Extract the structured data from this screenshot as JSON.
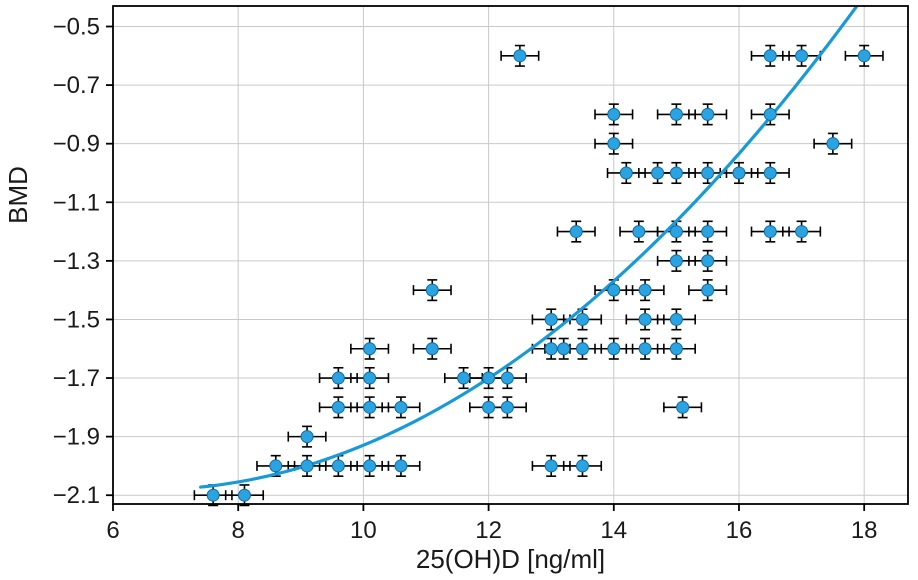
{
  "chart_data": {
    "type": "scatter",
    "title": "",
    "xlabel": "25(OH)D [ng/ml]",
    "ylabel": "BMD",
    "xlim": [
      6,
      18.7
    ],
    "ylim": [
      -2.13,
      -0.43
    ],
    "xticks": [
      6,
      8,
      10,
      12,
      14,
      16,
      18
    ],
    "yticks": [
      -0.5,
      -0.7,
      -0.9,
      -1.1,
      -1.3,
      -1.5,
      -1.7,
      -1.9,
      -2.1
    ],
    "grid": true,
    "legend": "none",
    "point_color": "#2ba3e0",
    "point_edge_color": "#0e6ca3",
    "curve_color": "#199ad8",
    "errorbar_color": "#000000",
    "grid_color": "#c9c9c9",
    "frame_color": "#000000",
    "xerr": 0.3,
    "yerr": 0.035,
    "points": [
      [
        7.6,
        -2.1
      ],
      [
        8.1,
        -2.1
      ],
      [
        8.6,
        -2.0
      ],
      [
        9.1,
        -2.0
      ],
      [
        9.6,
        -2.0
      ],
      [
        10.1,
        -2.0
      ],
      [
        10.6,
        -2.0
      ],
      [
        13.0,
        -2.0
      ],
      [
        13.5,
        -2.0
      ],
      [
        9.1,
        -1.9
      ],
      [
        9.6,
        -1.8
      ],
      [
        10.1,
        -1.8
      ],
      [
        10.6,
        -1.8
      ],
      [
        12.0,
        -1.8
      ],
      [
        12.3,
        -1.8
      ],
      [
        15.1,
        -1.8
      ],
      [
        9.6,
        -1.7
      ],
      [
        10.1,
        -1.7
      ],
      [
        11.6,
        -1.7
      ],
      [
        12.0,
        -1.7
      ],
      [
        12.3,
        -1.7
      ],
      [
        10.1,
        -1.6
      ],
      [
        11.1,
        -1.6
      ],
      [
        13.0,
        -1.6
      ],
      [
        13.2,
        -1.6
      ],
      [
        13.5,
        -1.6
      ],
      [
        14.0,
        -1.6
      ],
      [
        14.5,
        -1.6
      ],
      [
        15.0,
        -1.6
      ],
      [
        13.0,
        -1.5
      ],
      [
        13.5,
        -1.5
      ],
      [
        14.5,
        -1.5
      ],
      [
        15.0,
        -1.5
      ],
      [
        11.1,
        -1.4
      ],
      [
        14.0,
        -1.4
      ],
      [
        14.5,
        -1.4
      ],
      [
        15.5,
        -1.4
      ],
      [
        15.0,
        -1.3
      ],
      [
        15.5,
        -1.3
      ],
      [
        13.4,
        -1.2
      ],
      [
        14.4,
        -1.2
      ],
      [
        15.0,
        -1.2
      ],
      [
        15.5,
        -1.2
      ],
      [
        16.5,
        -1.2
      ],
      [
        17.0,
        -1.2
      ],
      [
        14.2,
        -1.0
      ],
      [
        14.7,
        -1.0
      ],
      [
        15.0,
        -1.0
      ],
      [
        15.5,
        -1.0
      ],
      [
        16.0,
        -1.0
      ],
      [
        16.5,
        -1.0
      ],
      [
        14.0,
        -0.9
      ],
      [
        17.5,
        -0.9
      ],
      [
        14.0,
        -0.8
      ],
      [
        15.0,
        -0.8
      ],
      [
        15.5,
        -0.8
      ],
      [
        16.5,
        -0.8
      ],
      [
        12.5,
        -0.6
      ],
      [
        16.5,
        -0.6
      ],
      [
        17.0,
        -0.6
      ],
      [
        18.0,
        -0.6
      ]
    ],
    "fit_curve": {
      "type": "quadratic",
      "formula": "y = a + b*(x - x0) + c*(x - x0)^2",
      "a": -2.07,
      "b": 0.024,
      "c": 0.0129,
      "x0": 7.5,
      "x_start": 7.4,
      "x_end": 17.95
    }
  }
}
